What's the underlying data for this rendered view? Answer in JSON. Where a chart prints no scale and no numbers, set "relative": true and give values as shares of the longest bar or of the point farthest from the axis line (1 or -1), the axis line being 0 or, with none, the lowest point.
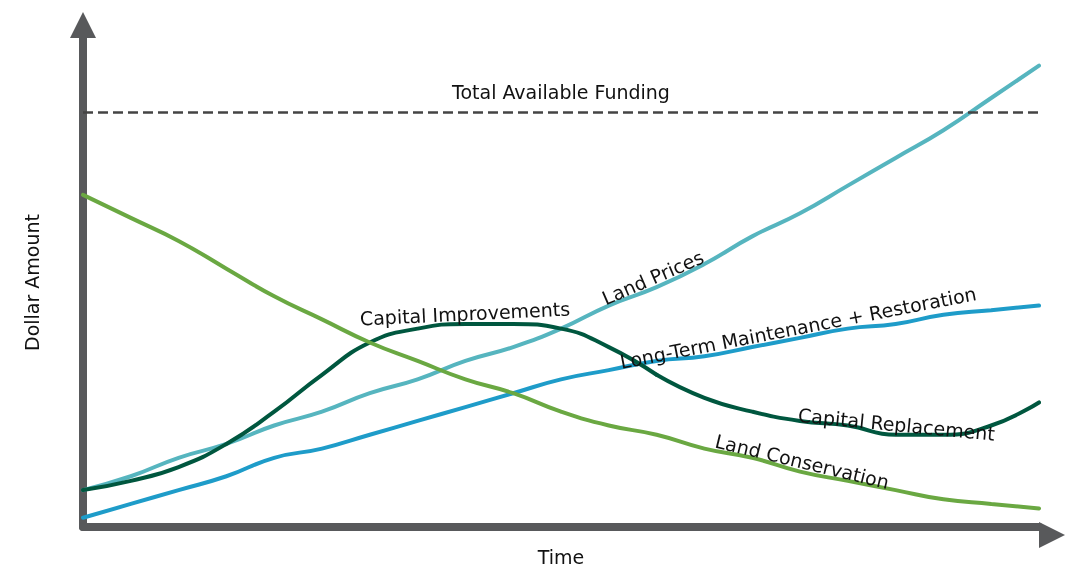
{
  "chart_data": {
    "type": "line",
    "relative": true,
    "xlabel": "Time",
    "ylabel": "Dollar Amount",
    "categories": [
      null,
      null,
      null,
      null,
      null,
      null,
      null,
      null,
      null,
      null,
      null,
      null,
      null,
      null,
      null,
      null,
      null,
      null,
      null,
      null,
      null
    ],
    "series": [
      {
        "name": "Land Prices",
        "color": "#56b5bf",
        "values": [
          0.08,
          0.11,
          0.15,
          0.18,
          0.22,
          0.25,
          0.29,
          0.32,
          0.36,
          0.39,
          0.43,
          0.48,
          0.52,
          0.57,
          0.63,
          0.68,
          0.74,
          0.8,
          0.86,
          0.93,
          1
        ]
      },
      {
        "name": "Long-Term Maintenance + Restoration",
        "color": "#1e9cc9",
        "values": [
          0.02,
          0.05,
          0.08,
          0.11,
          0.15,
          0.17,
          0.2,
          0.23,
          0.26,
          0.29,
          0.32,
          0.34,
          0.36,
          0.37,
          0.39,
          0.41,
          0.43,
          0.44,
          0.46,
          0.47,
          0.48
        ]
      },
      {
        "name": "Capital Improvements",
        "color": "#00573f",
        "values": [
          0.08,
          0.1,
          0.13,
          0.18,
          0.25,
          0.33,
          0.4,
          0.43,
          0.44,
          0.44,
          0.43,
          0.39,
          0.33,
          null,
          null,
          null,
          null,
          null,
          null,
          null,
          null
        ]
      },
      {
        "name": "Capital Replacement",
        "color": "#00573f",
        "values": [
          null,
          null,
          null,
          null,
          null,
          null,
          null,
          null,
          null,
          null,
          null,
          null,
          0.33,
          0.28,
          0.25,
          0.23,
          0.22,
          0.2,
          0.2,
          0.22,
          0.27
        ]
      },
      {
        "name": "Land Conservation",
        "color": "#6aa842",
        "values": [
          0.72,
          0.67,
          0.62,
          0.56,
          0.5,
          0.45,
          0.4,
          0.36,
          0.32,
          0.29,
          0.25,
          0.22,
          0.2,
          0.17,
          0.15,
          0.12,
          0.1,
          0.08,
          0.06,
          0.05,
          0.04
        ]
      }
    ],
    "ref_lines": [
      {
        "axis": "y",
        "value": 0.9,
        "label": "Total Available Funding",
        "color": "#444444",
        "line_style": "dashed"
      }
    ],
    "grid": false,
    "legend": false,
    "tick_labels": false,
    "marker": "none",
    "line_style": "solid"
  }
}
